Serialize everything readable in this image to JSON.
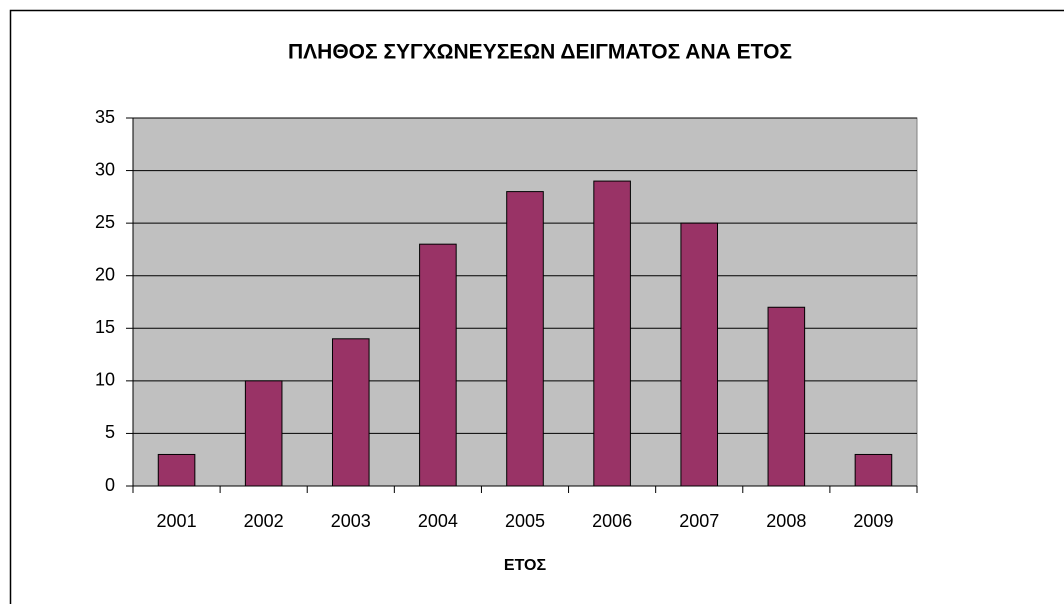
{
  "chart_data": {
    "type": "bar",
    "title": "ΠΛΗΘΟΣ ΣΥΓΧΩΝΕΥΣΕΩΝ ΔΕΙΓΜΑΤΟΣ ΑΝΑ ΕΤΟΣ",
    "x_label": "ΕΤΟΣ",
    "categories": [
      "2001",
      "2002",
      "2003",
      "2004",
      "2005",
      "2006",
      "2007",
      "2008",
      "2009"
    ],
    "values": [
      3,
      10,
      14,
      23,
      28,
      29,
      25,
      17,
      3
    ],
    "color": "#993366",
    "ylim": [
      0,
      35
    ],
    "yticks": [
      0,
      5,
      10,
      15,
      20,
      25,
      30,
      35
    ],
    "grid": true
  }
}
